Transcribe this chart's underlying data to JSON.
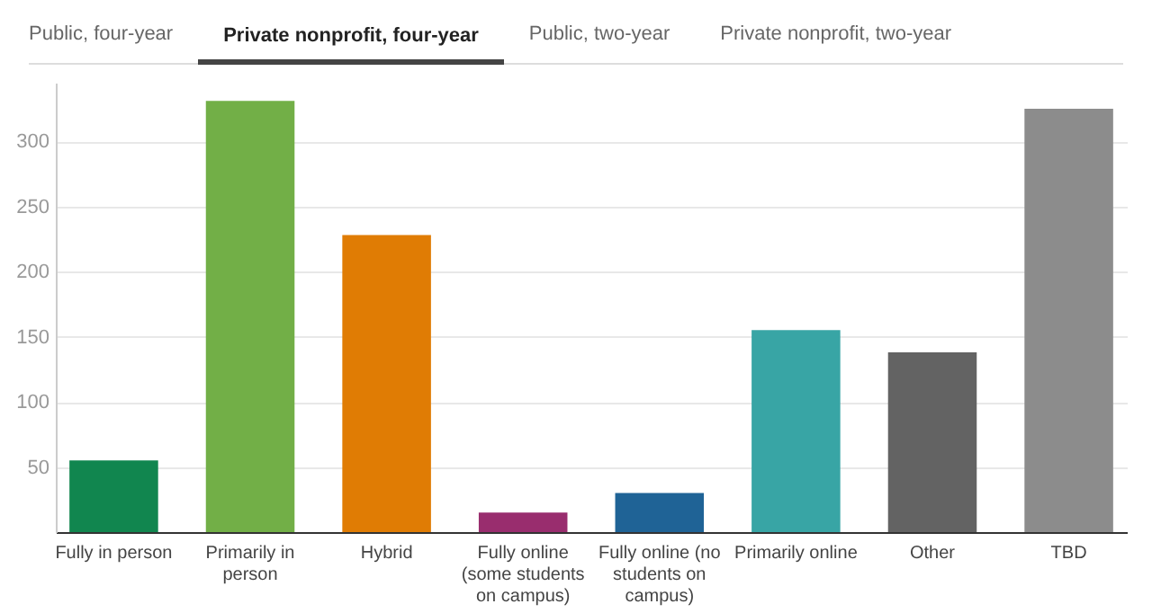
{
  "chart_data": {
    "type": "bar",
    "annotations": [
      "Public, four-year",
      "Private nonprofit, four-year",
      "Public, two-year",
      "Private nonprofit, two-year"
    ],
    "categories": [
      "Fully in person",
      "Primarily in person",
      "Hybrid",
      "Fully online (some students on campus)",
      "Fully online (no students on campus)",
      "Primarily online",
      "Other",
      "TBD"
    ],
    "values": [
      55,
      331,
      228,
      15,
      30,
      155,
      138,
      325
    ],
    "colors": [
      "#11864f",
      "#72af47",
      "#e07c04",
      "#992d6e",
      "#1f6396",
      "#38a5a5",
      "#636363",
      "#8c8c8c"
    ],
    "ylim": [
      0,
      345
    ],
    "yticks": [
      50,
      100,
      150,
      200,
      250,
      300
    ],
    "grid": "y"
  }
}
